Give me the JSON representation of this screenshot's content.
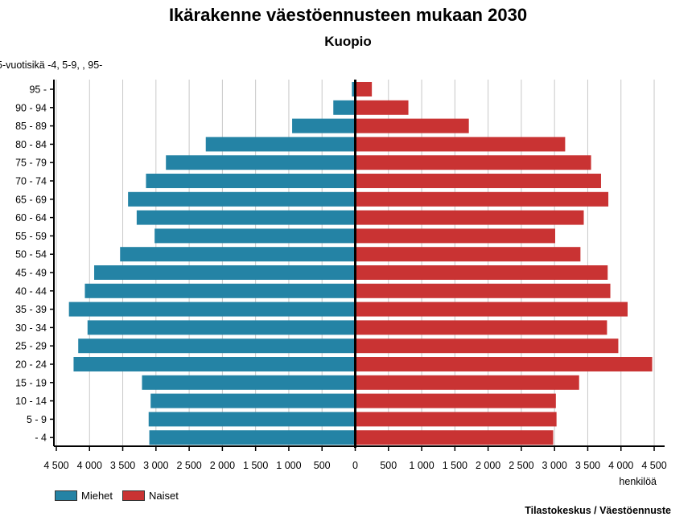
{
  "chart_data": {
    "type": "bar",
    "orientation": "horizontal-population-pyramid",
    "title": "Ikärakenne väestöennusteen mukaan 2030",
    "subtitle": "Kuopio",
    "ylabel": "5-vuotisikä -4, 5-9, , 95-",
    "xlabel": "henkilöä",
    "categories": [
      "95 -",
      "90 - 94",
      "85 - 89",
      "80 - 84",
      "75 - 79",
      "70 - 74",
      "65 - 69",
      "60 - 64",
      "55 - 59",
      "50 - 54",
      "45 - 49",
      "40 - 44",
      "35 - 39",
      "30 - 34",
      "25 - 29",
      "20 - 24",
      "15 - 19",
      "10 - 14",
      "5 - 9",
      "- 4"
    ],
    "series": [
      {
        "name": "Miehet",
        "color": "#2483a5",
        "side": "left",
        "values": [
          50,
          330,
          950,
          2250,
          2850,
          3150,
          3420,
          3290,
          3020,
          3540,
          3930,
          4070,
          4310,
          4030,
          4170,
          4240,
          3210,
          3080,
          3110,
          3100
        ]
      },
      {
        "name": "Naiset",
        "color": "#c93333",
        "side": "right",
        "values": [
          250,
          800,
          1710,
          3160,
          3550,
          3700,
          3810,
          3440,
          3010,
          3390,
          3800,
          3840,
          4100,
          3790,
          3960,
          4470,
          3370,
          3020,
          3030,
          2980
        ]
      }
    ],
    "xlim": [
      -4500,
      4500
    ],
    "xticks": [
      -4500,
      -4000,
      -3500,
      -3000,
      -2500,
      -2000,
      -1500,
      -1000,
      -500,
      0,
      500,
      1000,
      1500,
      2000,
      2500,
      3000,
      3500,
      4000,
      4500
    ],
    "xtick_labels": [
      "4 500",
      "4 000",
      "3 500",
      "3 000",
      "2 500",
      "2 000",
      "1 500",
      "1 000",
      "500",
      "0",
      "500",
      "1 000",
      "1 500",
      "2 000",
      "2 500",
      "3 000",
      "3 500",
      "4 000",
      "4 500"
    ],
    "grid": true,
    "legend": "bottom-left"
  },
  "source": "Tilastokeskus / Väestöennuste"
}
